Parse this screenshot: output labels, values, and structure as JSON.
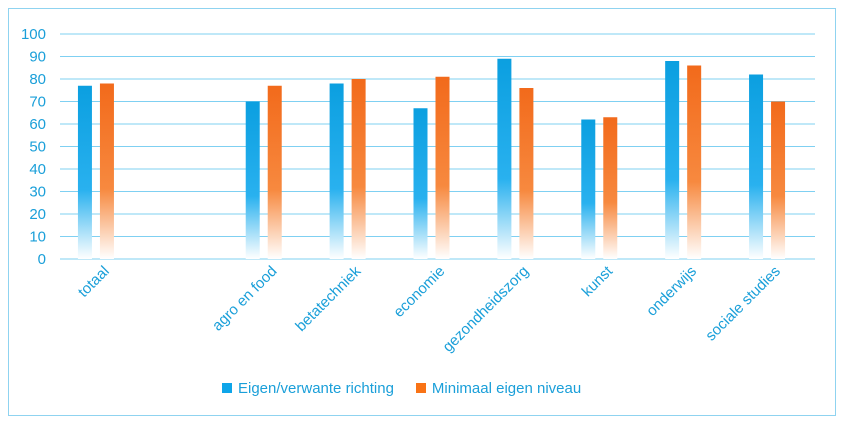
{
  "chart_data": {
    "type": "bar",
    "categories": [
      "totaal",
      "",
      "agro en food",
      "betatechniek",
      "economie",
      "gezondheidszorg",
      "kunst",
      "onderwijs",
      "sociale studies"
    ],
    "series": [
      {
        "name": "Eigen/verwante richting",
        "color": "#0ea5e9",
        "values": [
          77,
          null,
          70,
          78,
          67,
          89,
          62,
          88,
          82
        ]
      },
      {
        "name": "Minimaal eigen niveau",
        "color": "#f97316",
        "values": [
          78,
          null,
          77,
          80,
          81,
          76,
          63,
          86,
          70
        ]
      }
    ],
    "ylim": [
      0,
      100
    ],
    "yticks": [
      0,
      10,
      20,
      30,
      40,
      50,
      60,
      70,
      80,
      90,
      100
    ],
    "grid": true,
    "legend_position": "bottom",
    "title": "",
    "xlabel": "",
    "ylabel": ""
  }
}
